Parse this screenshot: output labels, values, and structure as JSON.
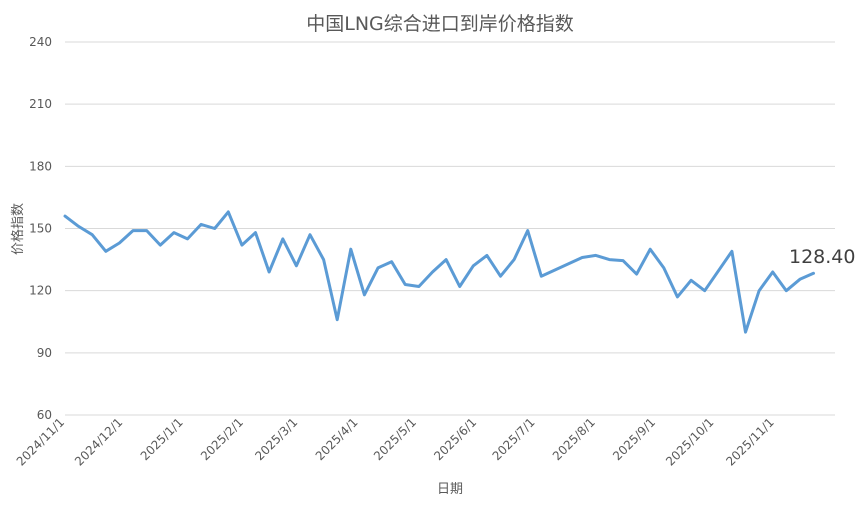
{
  "chart_data": {
    "type": "line",
    "title": "中国LNG综合进口到岸价格指数",
    "xlabel": "日期",
    "ylabel": "价格指数",
    "ylim": [
      60,
      240
    ],
    "yticks": [
      60,
      90,
      120,
      150,
      180,
      210,
      240
    ],
    "grid": true,
    "x_ticks": [
      "2024/11/1",
      "2024/12/1",
      "2025/1/1",
      "2025/2/1",
      "2025/3/1",
      "2025/4/1",
      "2025/5/1",
      "2025/6/1",
      "2025/7/1",
      "2025/8/1",
      "2025/9/1",
      "2025/10/1",
      "2025/11/1"
    ],
    "end_label": "128.40",
    "series": [
      {
        "color": "#5b9bd5",
        "points": [
          [
            "2024-11-01",
            156
          ],
          [
            "2024-11-08",
            151
          ],
          [
            "2024-11-15",
            147
          ],
          [
            "2024-11-22",
            139
          ],
          [
            "2024-11-29",
            143
          ],
          [
            "2024-12-06",
            149
          ],
          [
            "2024-12-13",
            149
          ],
          [
            "2024-12-20",
            142
          ],
          [
            "2024-12-27",
            148
          ],
          [
            "2025-01-03",
            145
          ],
          [
            "2025-01-10",
            152
          ],
          [
            "2025-01-17",
            150
          ],
          [
            "2025-01-24",
            158
          ],
          [
            "2025-01-31",
            142
          ],
          [
            "2025-02-07",
            148
          ],
          [
            "2025-02-14",
            129
          ],
          [
            "2025-02-21",
            145
          ],
          [
            "2025-02-28",
            132
          ],
          [
            "2025-03-07",
            147
          ],
          [
            "2025-03-14",
            135
          ],
          [
            "2025-03-21",
            106
          ],
          [
            "2025-03-28",
            140
          ],
          [
            "2025-04-04",
            118
          ],
          [
            "2025-04-11",
            131
          ],
          [
            "2025-04-18",
            134
          ],
          [
            "2025-04-25",
            123
          ],
          [
            "2025-05-02",
            122
          ],
          [
            "2025-05-09",
            129
          ],
          [
            "2025-05-16",
            135
          ],
          [
            "2025-05-23",
            122
          ],
          [
            "2025-05-30",
            132
          ],
          [
            "2025-06-06",
            137
          ],
          [
            "2025-06-13",
            127
          ],
          [
            "2025-06-20",
            135
          ],
          [
            "2025-06-27",
            149
          ],
          [
            "2025-07-04",
            127
          ],
          [
            "2025-07-25",
            136
          ],
          [
            "2025-08-01",
            137
          ],
          [
            "2025-08-08",
            135
          ],
          [
            "2025-08-15",
            134.5
          ],
          [
            "2025-08-22",
            128
          ],
          [
            "2025-08-29",
            140
          ],
          [
            "2025-09-05",
            131
          ],
          [
            "2025-09-12",
            117
          ],
          [
            "2025-09-19",
            125
          ],
          [
            "2025-09-26",
            120
          ],
          [
            "2025-10-10",
            139
          ],
          [
            "2025-10-17",
            100
          ],
          [
            "2025-10-24",
            120
          ],
          [
            "2025-10-31",
            129
          ],
          [
            "2025-11-07",
            120
          ],
          [
            "2025-11-14",
            125.5
          ],
          [
            "2025-11-21",
            128.4
          ]
        ]
      }
    ]
  }
}
